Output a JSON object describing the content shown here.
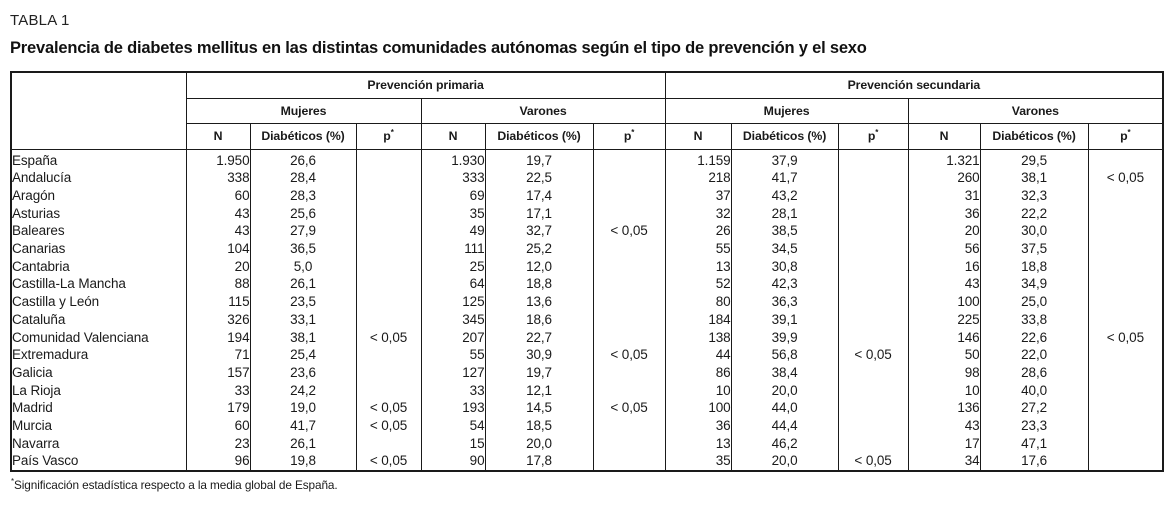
{
  "page": {
    "label": "TABLA 1",
    "title": "Prevalencia de diabetes mellitus en las distintas comunidades autónomas según el tipo de prevención y el sexo",
    "footnote_marker": "*",
    "footnote_text": "Significación estadística respecto a la media global de España."
  },
  "table": {
    "prevention_groups": [
      "Prevención primaria",
      "Prevención secundaria"
    ],
    "sex_groups": [
      "Mujeres",
      "Varones",
      "Mujeres",
      "Varones"
    ],
    "column_headers": {
      "n": "N",
      "diabetics": "Diabéticos (%)",
      "p": "p"
    },
    "p_superscript": "*",
    "rows": [
      {
        "region": "España",
        "cells": [
          "1.950",
          "26,6",
          "",
          "1.930",
          "19,7",
          "",
          "1.159",
          "37,9",
          "",
          "1.321",
          "29,5",
          ""
        ]
      },
      {
        "region": "Andalucía",
        "cells": [
          "338",
          "28,4",
          "",
          "333",
          "22,5",
          "",
          "218",
          "41,7",
          "",
          "260",
          "38,1",
          "< 0,05"
        ]
      },
      {
        "region": "Aragón",
        "cells": [
          "60",
          "28,3",
          "",
          "69",
          "17,4",
          "",
          "37",
          "43,2",
          "",
          "31",
          "32,3",
          ""
        ]
      },
      {
        "region": "Asturias",
        "cells": [
          "43",
          "25,6",
          "",
          "35",
          "17,1",
          "",
          "32",
          "28,1",
          "",
          "36",
          "22,2",
          ""
        ]
      },
      {
        "region": "Baleares",
        "cells": [
          "43",
          "27,9",
          "",
          "49",
          "32,7",
          "< 0,05",
          "26",
          "38,5",
          "",
          "20",
          "30,0",
          ""
        ]
      },
      {
        "region": "Canarias",
        "cells": [
          "104",
          "36,5",
          "",
          "111",
          "25,2",
          "",
          "55",
          "34,5",
          "",
          "56",
          "37,5",
          ""
        ]
      },
      {
        "region": "Cantabria",
        "cells": [
          "20",
          "5,0",
          "",
          "25",
          "12,0",
          "",
          "13",
          "30,8",
          "",
          "16",
          "18,8",
          ""
        ]
      },
      {
        "region": "Castilla-La Mancha",
        "cells": [
          "88",
          "26,1",
          "",
          "64",
          "18,8",
          "",
          "52",
          "42,3",
          "",
          "43",
          "34,9",
          ""
        ]
      },
      {
        "region": "Castilla y León",
        "cells": [
          "115",
          "23,5",
          "",
          "125",
          "13,6",
          "",
          "80",
          "36,3",
          "",
          "100",
          "25,0",
          ""
        ]
      },
      {
        "region": "Cataluña",
        "cells": [
          "326",
          "33,1",
          "",
          "345",
          "18,6",
          "",
          "184",
          "39,1",
          "",
          "225",
          "33,8",
          ""
        ]
      },
      {
        "region": "Comunidad Valenciana",
        "cells": [
          "194",
          "38,1",
          "< 0,05",
          "207",
          "22,7",
          "",
          "138",
          "39,9",
          "",
          "146",
          "22,6",
          "< 0,05"
        ]
      },
      {
        "region": "Extremadura",
        "cells": [
          "71",
          "25,4",
          "",
          "55",
          "30,9",
          "< 0,05",
          "44",
          "56,8",
          "< 0,05",
          "50",
          "22,0",
          ""
        ]
      },
      {
        "region": "Galicia",
        "cells": [
          "157",
          "23,6",
          "",
          "127",
          "19,7",
          "",
          "86",
          "38,4",
          "",
          "98",
          "28,6",
          ""
        ]
      },
      {
        "region": "La Rioja",
        "cells": [
          "33",
          "24,2",
          "",
          "33",
          "12,1",
          "",
          "10",
          "20,0",
          "",
          "10",
          "40,0",
          ""
        ]
      },
      {
        "region": "Madrid",
        "cells": [
          "179",
          "19,0",
          "< 0,05",
          "193",
          "14,5",
          "< 0,05",
          "100",
          "44,0",
          "",
          "136",
          "27,2",
          ""
        ]
      },
      {
        "region": "Murcia",
        "cells": [
          "60",
          "41,7",
          "< 0,05",
          "54",
          "18,5",
          "",
          "36",
          "44,4",
          "",
          "43",
          "23,3",
          ""
        ]
      },
      {
        "region": "Navarra",
        "cells": [
          "23",
          "26,1",
          "",
          "15",
          "20,0",
          "",
          "13",
          "46,2",
          "",
          "17",
          "47,1",
          ""
        ]
      },
      {
        "region": "País Vasco",
        "cells": [
          "96",
          "19,8",
          "< 0,05",
          "90",
          "17,8",
          "",
          "35",
          "20,0",
          "< 0,05",
          "34",
          "17,6",
          ""
        ]
      }
    ]
  }
}
